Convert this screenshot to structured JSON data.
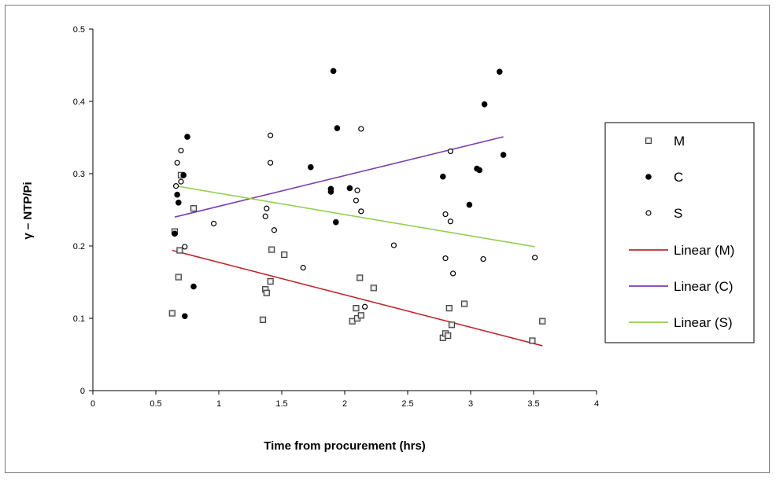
{
  "chart_data": {
    "type": "scatter",
    "title": "",
    "xlabel": "Time from procurement (hrs)",
    "ylabel": "γ – NTP/Pi",
    "xlim": [
      0,
      4
    ],
    "ylim": [
      0,
      0.5
    ],
    "xticks": [
      "0",
      "0.5",
      "1",
      "1.5",
      "2",
      "2.5",
      "3",
      "3.5",
      "4"
    ],
    "yticks": [
      "0",
      "0.1",
      "0.2",
      "0.3",
      "0.4",
      "0.5"
    ],
    "grid": false,
    "legend_position": "right",
    "series": [
      {
        "name": "M",
        "marker": "square-open",
        "color": "#404040",
        "points": [
          [
            0.63,
            0.107
          ],
          [
            0.65,
            0.22
          ],
          [
            0.68,
            0.157
          ],
          [
            0.69,
            0.194
          ],
          [
            0.7,
            0.298
          ],
          [
            0.8,
            0.252
          ],
          [
            1.35,
            0.098
          ],
          [
            1.37,
            0.14
          ],
          [
            1.38,
            0.135
          ],
          [
            1.41,
            0.151
          ],
          [
            1.42,
            0.195
          ],
          [
            1.52,
            0.188
          ],
          [
            2.06,
            0.096
          ],
          [
            2.09,
            0.114
          ],
          [
            2.1,
            0.1
          ],
          [
            2.12,
            0.156
          ],
          [
            2.13,
            0.104
          ],
          [
            2.23,
            0.142
          ],
          [
            2.78,
            0.073
          ],
          [
            2.8,
            0.079
          ],
          [
            2.82,
            0.076
          ],
          [
            2.83,
            0.114
          ],
          [
            2.85,
            0.091
          ],
          [
            2.95,
            0.12
          ],
          [
            3.49,
            0.069
          ],
          [
            3.57,
            0.096
          ]
        ]
      },
      {
        "name": "C",
        "marker": "circle-filled",
        "color": "#000000",
        "points": [
          [
            0.65,
            0.217
          ],
          [
            0.67,
            0.271
          ],
          [
            0.68,
            0.26
          ],
          [
            0.72,
            0.298
          ],
          [
            0.73,
            0.103
          ],
          [
            0.75,
            0.351
          ],
          [
            0.8,
            0.144
          ],
          [
            1.73,
            0.309
          ],
          [
            1.89,
            0.275
          ],
          [
            1.89,
            0.279
          ],
          [
            1.91,
            0.442
          ],
          [
            1.93,
            0.233
          ],
          [
            1.94,
            0.363
          ],
          [
            2.04,
            0.28
          ],
          [
            2.78,
            0.296
          ],
          [
            2.99,
            0.257
          ],
          [
            3.05,
            0.307
          ],
          [
            3.07,
            0.305
          ],
          [
            3.11,
            0.396
          ],
          [
            3.23,
            0.441
          ],
          [
            3.26,
            0.326
          ]
        ]
      },
      {
        "name": "S",
        "marker": "circle-open",
        "color": "#000000",
        "points": [
          [
            0.66,
            0.283
          ],
          [
            0.67,
            0.315
          ],
          [
            0.7,
            0.332
          ],
          [
            0.7,
            0.289
          ],
          [
            0.73,
            0.199
          ],
          [
            0.96,
            0.231
          ],
          [
            1.37,
            0.241
          ],
          [
            1.38,
            0.252
          ],
          [
            1.41,
            0.353
          ],
          [
            1.41,
            0.315
          ],
          [
            1.44,
            0.222
          ],
          [
            1.67,
            0.17
          ],
          [
            2.09,
            0.263
          ],
          [
            2.1,
            0.277
          ],
          [
            2.13,
            0.362
          ],
          [
            2.13,
            0.248
          ],
          [
            2.16,
            0.116
          ],
          [
            2.39,
            0.201
          ],
          [
            2.8,
            0.244
          ],
          [
            2.8,
            0.183
          ],
          [
            2.84,
            0.331
          ],
          [
            2.84,
            0.234
          ],
          [
            2.86,
            0.162
          ],
          [
            3.1,
            0.182
          ],
          [
            3.51,
            0.184
          ]
        ]
      },
      {
        "name": "Linear (M)",
        "type": "line",
        "color": "#c0272d",
        "x": [
          0.63,
          3.57
        ],
        "y": [
          0.194,
          0.062
        ]
      },
      {
        "name": "Linear (C)",
        "type": "line",
        "color": "#7a3fb0",
        "x": [
          0.65,
          3.26
        ],
        "y": [
          0.24,
          0.351
        ]
      },
      {
        "name": "Linear (S)",
        "type": "line",
        "color": "#92d050",
        "x": [
          0.66,
          3.51
        ],
        "y": [
          0.283,
          0.199
        ]
      }
    ]
  }
}
